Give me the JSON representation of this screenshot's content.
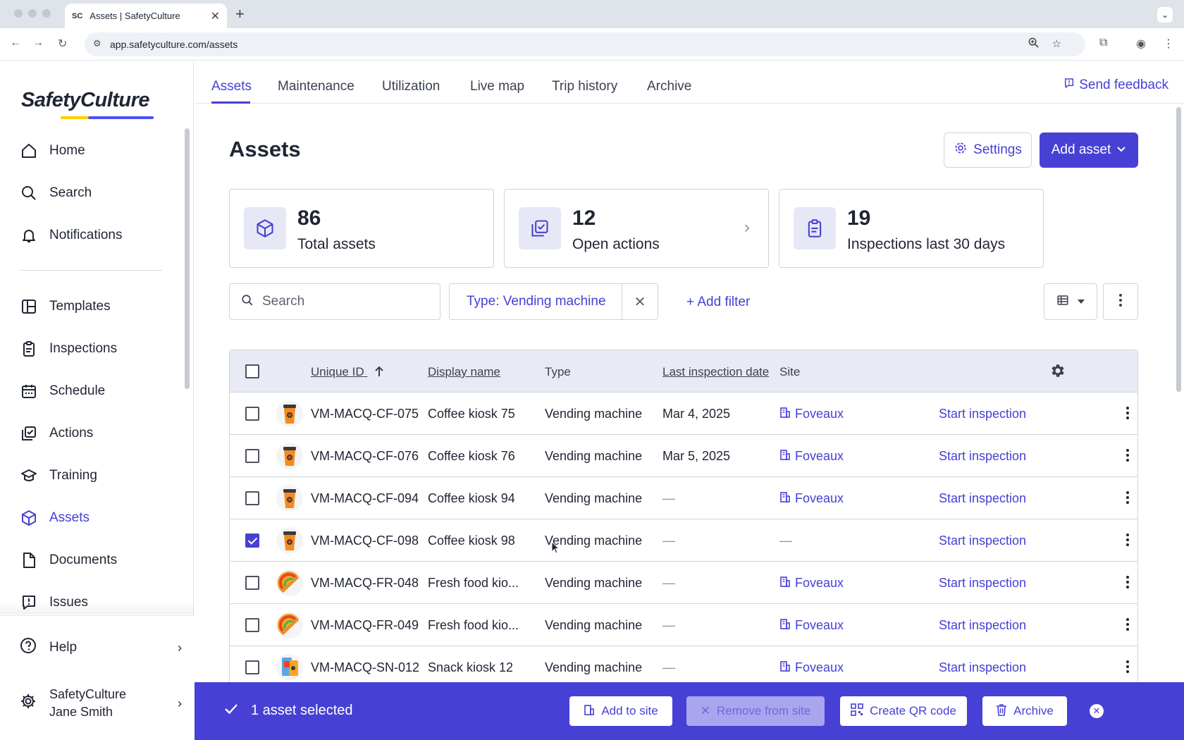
{
  "browser": {
    "tab_title": "Assets | SafetyCulture",
    "tab_favicon": "SC",
    "url": "app.safetyculture.com/assets"
  },
  "sidebar": {
    "logo": "SafetyCulture",
    "items": [
      {
        "label": "Home",
        "icon": "home-icon"
      },
      {
        "label": "Search",
        "icon": "search-icon"
      },
      {
        "label": "Notifications",
        "icon": "bell-icon"
      },
      {
        "label": "Templates",
        "icon": "templates-icon"
      },
      {
        "label": "Inspections",
        "icon": "clipboard-icon"
      },
      {
        "label": "Schedule",
        "icon": "calendar-icon"
      },
      {
        "label": "Actions",
        "icon": "actions-icon"
      },
      {
        "label": "Training",
        "icon": "graduation-cap-icon"
      },
      {
        "label": "Assets",
        "icon": "cube-icon",
        "active": true
      },
      {
        "label": "Documents",
        "icon": "document-icon"
      },
      {
        "label": "Issues",
        "icon": "issue-icon"
      }
    ],
    "help": "Help",
    "org_name": "SafetyCulture",
    "user_name": "Jane Smith"
  },
  "topnav": {
    "tabs": [
      "Assets",
      "Maintenance",
      "Utilization",
      "Live map",
      "Trip history",
      "Archive"
    ],
    "active": "Assets",
    "feedback": "Send feedback"
  },
  "page": {
    "title": "Assets",
    "settings_label": "Settings",
    "add_asset_label": "Add asset"
  },
  "stats": [
    {
      "value": "86",
      "label": "Total assets"
    },
    {
      "value": "12",
      "label": "Open actions"
    },
    {
      "value": "19",
      "label": "Inspections last 30 days"
    }
  ],
  "filters": {
    "search_placeholder": "Search",
    "active_filter": "Type: Vending machine",
    "add_filter": "+ Add filter"
  },
  "table": {
    "headers": {
      "unique_id": "Unique ID",
      "display_name": "Display name",
      "type": "Type",
      "last_inspection": "Last inspection date",
      "site": "Site"
    },
    "rows": [
      {
        "id": "VM-MACQ-CF-075",
        "name": "Coffee kiosk 75",
        "type": "Vending machine",
        "date": "Mar 4, 2025",
        "site": "Foveaux",
        "action": "Start inspection",
        "checked": false,
        "avatar": "coffee"
      },
      {
        "id": "VM-MACQ-CF-076",
        "name": "Coffee kiosk 76",
        "type": "Vending machine",
        "date": "Mar 5, 2025",
        "site": "Foveaux",
        "action": "Start inspection",
        "checked": false,
        "avatar": "coffee"
      },
      {
        "id": "VM-MACQ-CF-094",
        "name": "Coffee kiosk 94",
        "type": "Vending machine",
        "date": "—",
        "site": "Foveaux",
        "action": "Start inspection",
        "checked": false,
        "avatar": "coffee"
      },
      {
        "id": "VM-MACQ-CF-098",
        "name": "Coffee kiosk 98",
        "type": "Vending machine",
        "date": "—",
        "site": "—",
        "action": "Start inspection",
        "checked": true,
        "avatar": "coffee"
      },
      {
        "id": "VM-MACQ-FR-048",
        "name": "Fresh food kio...",
        "type": "Vending machine",
        "date": "—",
        "site": "Foveaux",
        "action": "Start inspection",
        "checked": false,
        "avatar": "food"
      },
      {
        "id": "VM-MACQ-FR-049",
        "name": "Fresh food kio...",
        "type": "Vending machine",
        "date": "—",
        "site": "Foveaux",
        "action": "Start inspection",
        "checked": false,
        "avatar": "food"
      },
      {
        "id": "VM-MACQ-SN-012",
        "name": "Snack kiosk 12",
        "type": "Vending machine",
        "date": "—",
        "site": "Foveaux",
        "action": "Start inspection",
        "checked": false,
        "avatar": "snack"
      }
    ]
  },
  "actionbar": {
    "selected": "1 asset selected",
    "add_to_site": "Add to site",
    "remove_from_site": "Remove from site",
    "create_qr": "Create QR code",
    "archive": "Archive"
  },
  "colors": {
    "accent": "#4740d4",
    "header_bg": "#e8ebf4",
    "icon_tile_bg": "#e7e8f6"
  }
}
